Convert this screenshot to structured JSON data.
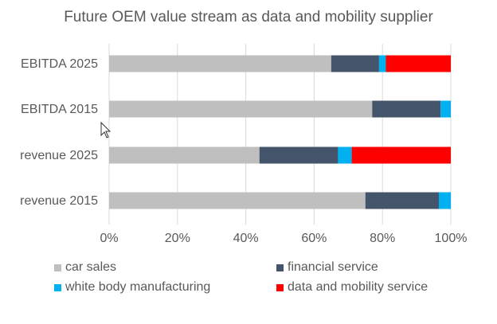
{
  "chart_data": {
    "type": "bar",
    "orientation": "horizontal",
    "stacked": "percent",
    "title": "Future OEM value stream as data and mobility supplier",
    "categories": [
      "EBITDA 2025",
      "EBITDA 2015",
      "revenue 2025",
      "revenue 2015"
    ],
    "series": [
      {
        "name": "car sales",
        "color": "#BFBFBF",
        "values": [
          65,
          77,
          44,
          75
        ]
      },
      {
        "name": "financial service",
        "color": "#44546A",
        "values": [
          14,
          20,
          23,
          21.5
        ]
      },
      {
        "name": "white body manufacturing",
        "color": "#00B0F0",
        "values": [
          2,
          3,
          4,
          3.5
        ]
      },
      {
        "name": "data and mobility service",
        "color": "#FF0000",
        "values": [
          19,
          0,
          29,
          0
        ]
      }
    ],
    "xlim": [
      0,
      100
    ],
    "xticks": [
      "0%",
      "20%",
      "40%",
      "60%",
      "80%",
      "100%"
    ],
    "grid": true,
    "legend_position": "bottom"
  }
}
